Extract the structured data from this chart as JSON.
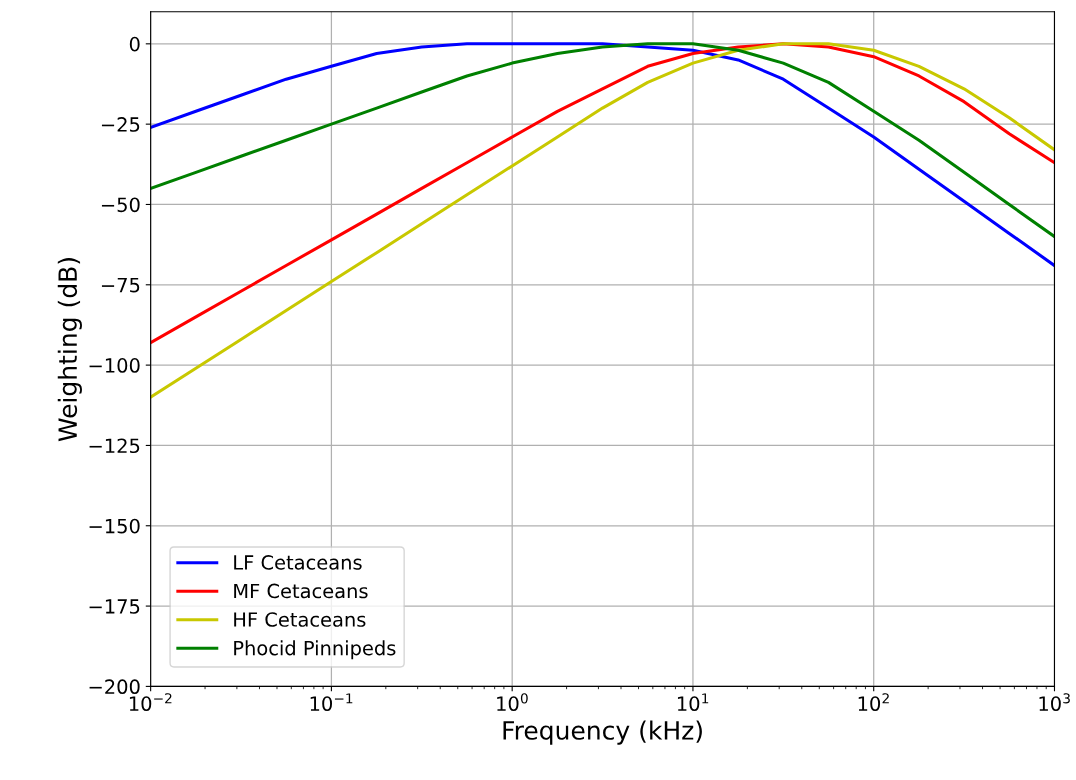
{
  "chart_data": {
    "type": "line",
    "xlabel": "Frequency (kHz)",
    "ylabel": "Weighting (dB)",
    "log": "x",
    "x": [
      0.01,
      0.0178,
      0.0316,
      0.0562,
      0.1,
      0.178,
      0.316,
      0.562,
      1,
      1.78,
      3.16,
      5.62,
      10,
      17.8,
      31.6,
      56.2,
      100,
      178,
      316,
      562,
      1000
    ],
    "series": [
      {
        "name": "LF Cetaceans",
        "color": "#0000ff",
        "values": [
          -26,
          -21,
          -16,
          -11,
          -7,
          -3,
          -1,
          0,
          0,
          0,
          0,
          -1,
          -2,
          -5,
          -11,
          -20,
          -29,
          -39,
          -49,
          -59,
          -69
        ]
      },
      {
        "name": "MF Cetaceans",
        "color": "#ff0000",
        "values": [
          -93,
          -85,
          -77,
          -69,
          -61,
          -53,
          -45,
          -37,
          -29,
          -21,
          -14,
          -7,
          -3,
          -1,
          0,
          -1,
          -4,
          -10,
          -18,
          -28,
          -37
        ]
      },
      {
        "name": "HF Cetaceans",
        "color": "#c8c800",
        "values": [
          -110,
          -101,
          -92,
          -83,
          -74,
          -65,
          -56,
          -47,
          -38,
          -29,
          -20,
          -12,
          -6,
          -2,
          0,
          0,
          -2,
          -7,
          -14,
          -23,
          -33
        ]
      },
      {
        "name": "Phocid Pinnipeds",
        "color": "#008000",
        "values": [
          -45,
          -40,
          -35,
          -30,
          -25,
          -20,
          -15,
          -10,
          -6,
          -3,
          -1,
          0,
          0,
          -2,
          -6,
          -12,
          -21,
          -30,
          -40,
          -50,
          -60
        ]
      }
    ],
    "xlim": [
      0.01,
      1000
    ],
    "xticks": [
      {
        "value": 0.01,
        "label": "10$^{−2}$"
      },
      {
        "value": 0.1,
        "label": "10$^{−1}$"
      },
      {
        "value": 1,
        "label": "10$^{0}$"
      },
      {
        "value": 10,
        "label": "10$^{1}$"
      },
      {
        "value": 100,
        "label": "10$^{2}$"
      },
      {
        "value": 1000,
        "label": "10$^{3}$"
      }
    ],
    "ylim": [
      -200,
      10
    ],
    "yticks": [
      0,
      -25,
      -50,
      -75,
      -100,
      -125,
      -150,
      -175,
      -200
    ],
    "grid": true,
    "legend": "lower left",
    "marker": "none",
    "line_style": "solid"
  }
}
